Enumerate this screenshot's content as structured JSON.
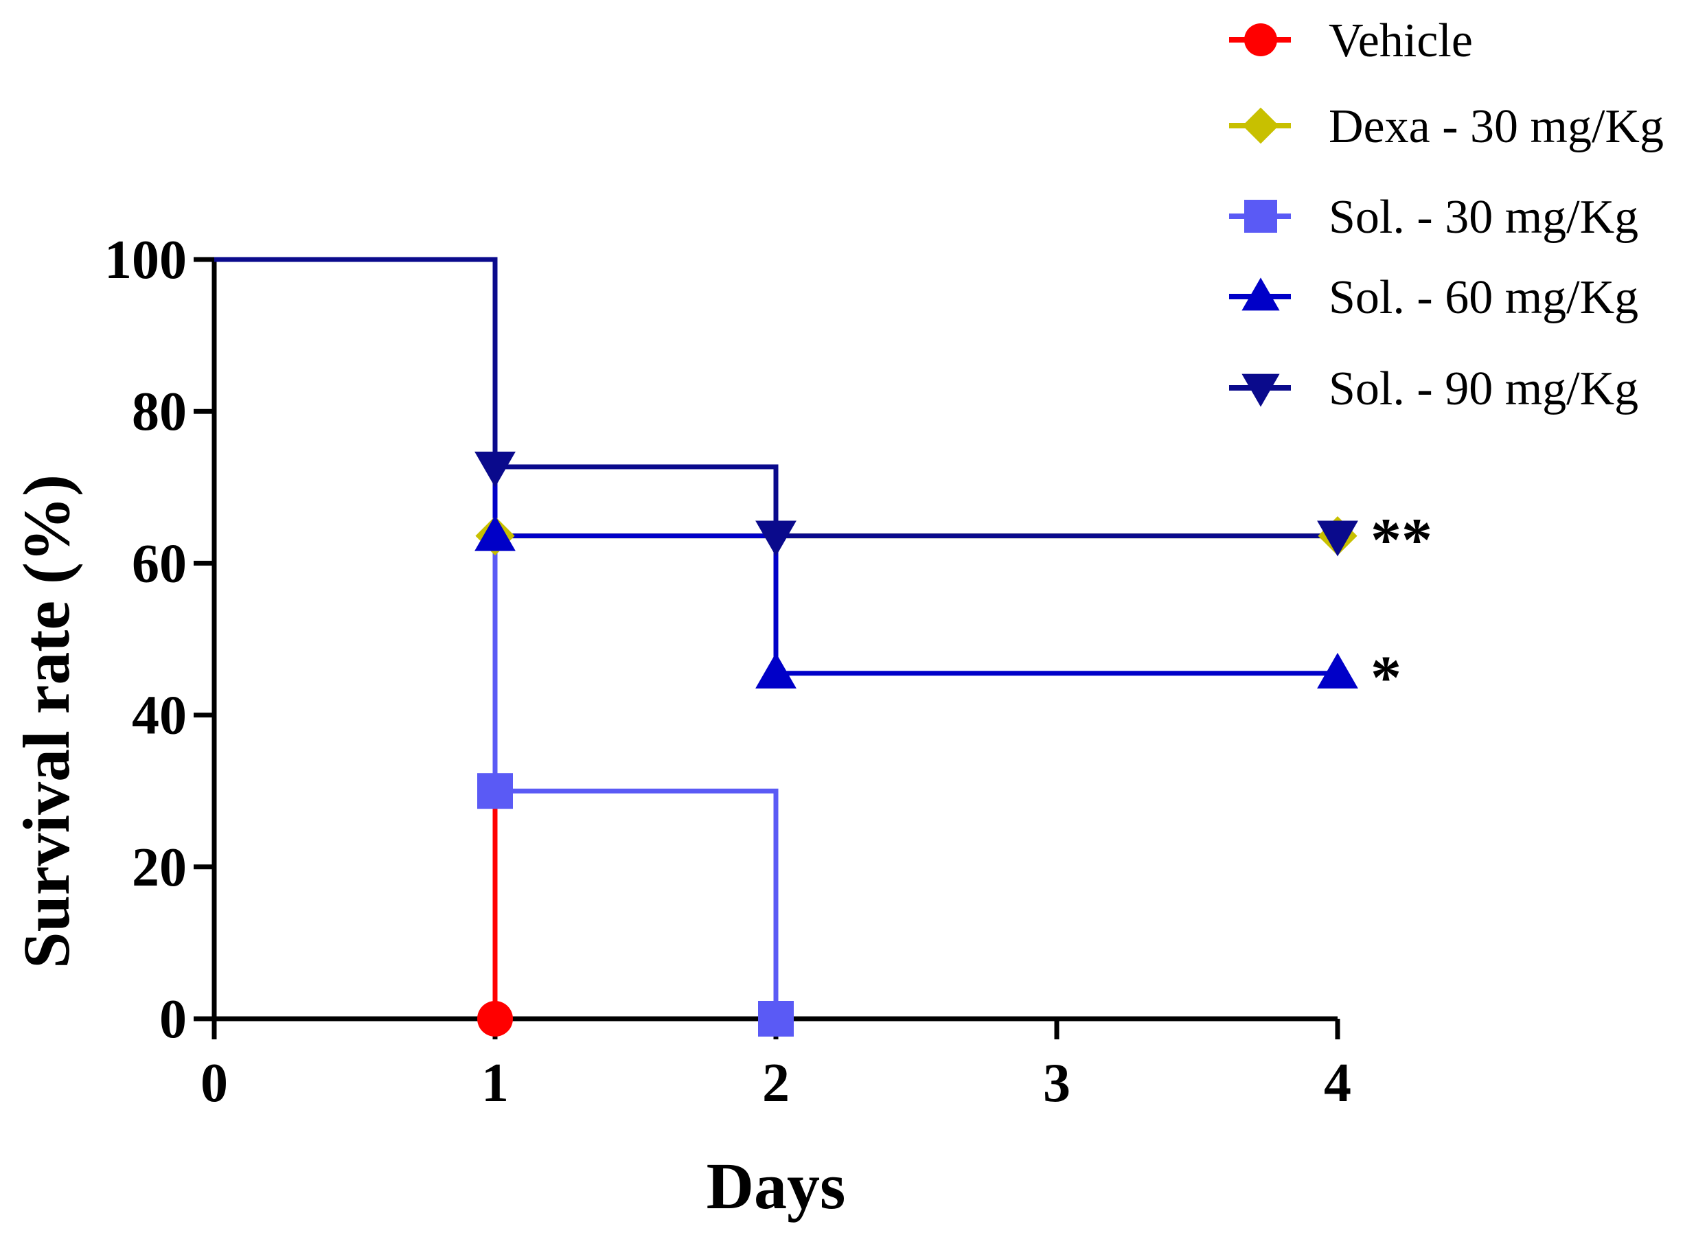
{
  "chart_data": {
    "type": "line",
    "step": true,
    "xlabel": "Days",
    "ylabel": "Survival rate (%)",
    "xlim": [
      0,
      4
    ],
    "ylim": [
      0,
      100
    ],
    "x_ticks": [
      "0",
      "1",
      "2",
      "3",
      "4"
    ],
    "y_ticks": [
      "0",
      "20",
      "40",
      "60",
      "80",
      "100"
    ],
    "grid": false,
    "legend_position": "top-right",
    "series": [
      {
        "name": "Vehicle",
        "color": "#ff0000",
        "marker": "circle",
        "points": [
          [
            0,
            100
          ],
          [
            1,
            0
          ]
        ]
      },
      {
        "name": "Dexa - 30 mg/Kg",
        "color": "#c8c000",
        "marker": "diamond",
        "points": [
          [
            0,
            100
          ],
          [
            1,
            63.6
          ],
          [
            4,
            63.6
          ]
        ]
      },
      {
        "name": "Sol. - 30 mg/Kg",
        "color": "#5a5af5",
        "marker": "square",
        "points": [
          [
            0,
            100
          ],
          [
            1,
            30
          ],
          [
            2,
            0
          ]
        ]
      },
      {
        "name": "Sol. - 60 mg/Kg",
        "color": "#0000c8",
        "marker": "triangle-up",
        "points": [
          [
            0,
            100
          ],
          [
            1,
            63.6
          ],
          [
            2,
            45.5
          ],
          [
            4,
            45.5
          ]
        ]
      },
      {
        "name": "Sol. - 90 mg/Kg",
        "color": "#0a0a8c",
        "marker": "triangle-down",
        "points": [
          [
            0,
            100
          ],
          [
            1,
            72.7
          ],
          [
            2,
            63.6
          ],
          [
            4,
            63.6
          ]
        ]
      }
    ],
    "annotations": [
      {
        "text": "**",
        "x": 4,
        "y": 63.6
      },
      {
        "text": "*",
        "x": 4,
        "y": 45.5
      }
    ]
  }
}
